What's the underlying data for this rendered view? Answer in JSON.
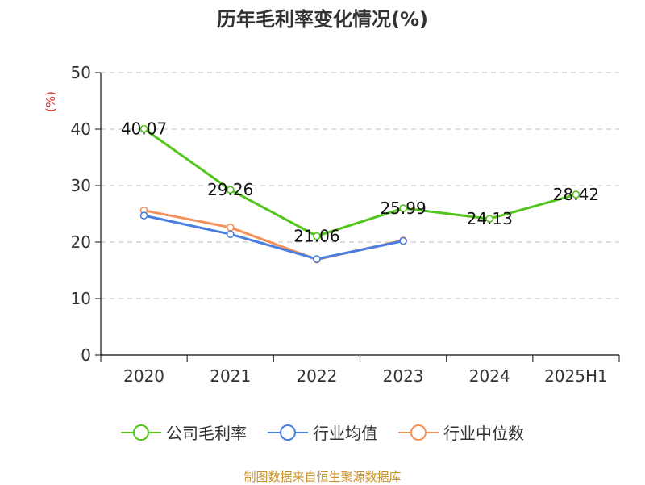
{
  "title": "历年毛利率变化情况(%)",
  "source": "制图数据来自恒生聚源数据库",
  "colors": {
    "axis": "#333333",
    "grid": "#cccccc",
    "unit": "#e0312f"
  },
  "chart_data": {
    "type": "line",
    "categories": [
      "2020",
      "2021",
      "2022",
      "2023",
      "2024",
      "2025H1"
    ],
    "ylabel": "(%)",
    "ylim": [
      0,
      50
    ],
    "yticks": [
      0,
      10,
      20,
      30,
      40,
      50
    ],
    "grid": true,
    "legend_position": "bottom",
    "series": [
      {
        "name": "公司毛利率",
        "color": "#52c41a",
        "values": [
          40.07,
          29.26,
          21.06,
          25.99,
          24.13,
          28.42
        ],
        "labels": [
          "40.07",
          "29.26",
          "21.06",
          "25.99",
          "24.13",
          "28.42"
        ]
      },
      {
        "name": "行业均值",
        "color": "#4a7fe0",
        "values": [
          24.7,
          21.4,
          17.0,
          20.2,
          null,
          null
        ]
      },
      {
        "name": "行业中位数",
        "color": "#f5915a",
        "values": [
          25.6,
          22.6,
          16.9,
          20.3,
          null,
          null
        ]
      }
    ]
  }
}
